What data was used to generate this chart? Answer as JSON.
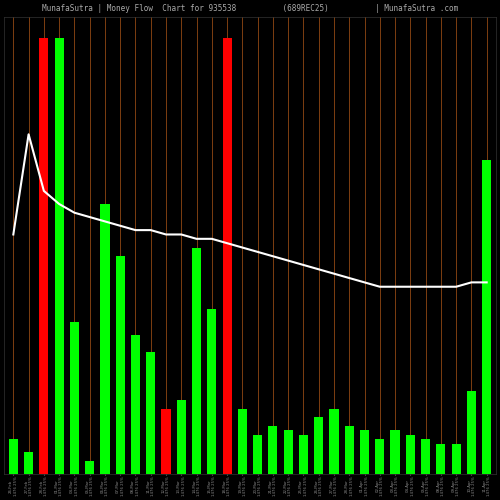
{
  "title": "MunafaSutra | Money Flow  Chart for 935538          (689REC25)          | MunafaSutra .com",
  "background_color": "#000000",
  "bar_color_green": "#00ff00",
  "bar_color_red": "#ff0000",
  "grid_color": "#8B4513",
  "line_color": "#ffffff",
  "title_color": "#aaaaaa",
  "tick_color": "#888888",
  "categories": [
    "26-Feb\n1476 25%",
    "27-Feb\n1476 25%",
    "28-Feb\n1476 25%",
    "01-Mar\n1476 25%",
    "04-Mar\n1476 25%",
    "05-Mar\n1476 25%",
    "06-Mar\n1476 25%",
    "07-Mar\n1476 25%",
    "08-Mar\n1476 25%",
    "11-Mar\n1476 25%",
    "12-Mar\n1476 25%",
    "13-Mar\n1476 25%",
    "14-Mar\n1476 25%",
    "15-Mar\n1476 25%",
    "18-Mar\n1476 25%",
    "19-Mar\n1476 25%",
    "20-Mar\n1476 25%",
    "21-Mar\n1476 25%",
    "22-Mar\n1476 25%",
    "25-Mar\n1476 25%",
    "26-Mar\n1476 25%",
    "27-Mar\n1476 25%",
    "28-Mar\n1476 25%",
    "01-Apr\n1476 25%",
    "02-Apr\n1476 25%",
    "03-Apr\n1476 25%",
    "04-Apr\n1476 25%",
    "05-Apr\n1476 25%",
    "08-Apr\n1476 25%",
    "09-Apr\n1476 25%",
    "10-Apr\n1476 25%",
    "11-Apr\n1476 25%"
  ],
  "bar_heights": [
    8,
    5,
    100,
    100,
    35,
    3,
    62,
    50,
    32,
    28,
    15,
    17,
    52,
    38,
    100,
    15,
    9,
    11,
    10,
    9,
    13,
    15,
    11,
    10,
    8,
    10,
    9,
    8,
    7,
    7,
    19,
    72
  ],
  "bar_colors": [
    "green",
    "green",
    "red",
    "green",
    "green",
    "green",
    "green",
    "green",
    "green",
    "green",
    "red",
    "green",
    "green",
    "green",
    "red",
    "green",
    "green",
    "green",
    "green",
    "green",
    "green",
    "green",
    "green",
    "green",
    "green",
    "green",
    "green",
    "green",
    "green",
    "green",
    "green",
    "green"
  ],
  "line_values": [
    55,
    78,
    65,
    62,
    60,
    59,
    58,
    57,
    56,
    56,
    55,
    55,
    54,
    54,
    53,
    52,
    51,
    50,
    49,
    48,
    47,
    46,
    45,
    44,
    43,
    43,
    43,
    43,
    43,
    43,
    44,
    44
  ],
  "ylim": [
    0,
    105
  ],
  "figsize": [
    5.0,
    5.0
  ],
  "dpi": 100
}
